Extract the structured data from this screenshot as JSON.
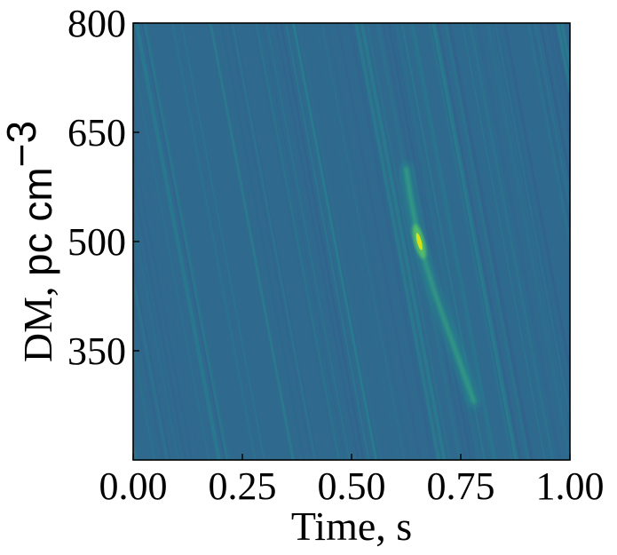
{
  "chart_data": {
    "type": "heatmap",
    "title": "",
    "xlabel": "Time, s",
    "ylabel_text": "DM, ",
    "ylabel_unit": "pc cm",
    "ylabel_exp": "−3",
    "xlim": [
      0.0,
      1.0
    ],
    "ylim": [
      200,
      800
    ],
    "x_ticks": [
      0.0,
      0.25,
      0.5,
      0.75,
      1.0
    ],
    "x_tick_labels": [
      "0.00",
      "0.25",
      "0.50",
      "0.75",
      "1.00"
    ],
    "y_ticks": [
      350,
      500,
      650,
      800
    ],
    "y_tick_labels": [
      "350",
      "500",
      "650",
      "800"
    ],
    "colormap": "viridis",
    "grid": false,
    "background_color": "#2f6a8e",
    "burst": {
      "time_s": 0.655,
      "dm": 500,
      "peak_color": "#d8e219"
    },
    "sweep_track": [
      {
        "dm": 600,
        "time_s": 0.625
      },
      {
        "dm": 560,
        "time_s": 0.635
      },
      {
        "dm": 520,
        "time_s": 0.648
      },
      {
        "dm": 500,
        "time_s": 0.655
      },
      {
        "dm": 470,
        "time_s": 0.67
      },
      {
        "dm": 430,
        "time_s": 0.69
      },
      {
        "dm": 380,
        "time_s": 0.72
      },
      {
        "dm": 330,
        "time_s": 0.75
      },
      {
        "dm": 280,
        "time_s": 0.78
      }
    ]
  }
}
